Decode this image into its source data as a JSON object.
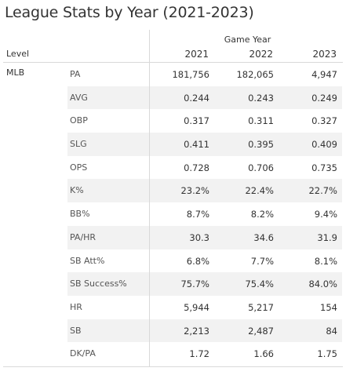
{
  "title": "League Stats by Year (2021-2023)",
  "header": {
    "group_label": "Game Year",
    "level_label": "Level",
    "years": [
      "2021",
      "2022",
      "2023"
    ]
  },
  "level": "MLB",
  "rows": [
    {
      "metric": "PA",
      "values": [
        "181,756",
        "182,065",
        "4,947"
      ]
    },
    {
      "metric": "AVG",
      "values": [
        "0.244",
        "0.243",
        "0.249"
      ]
    },
    {
      "metric": "OBP",
      "values": [
        "0.317",
        "0.311",
        "0.327"
      ]
    },
    {
      "metric": "SLG",
      "values": [
        "0.411",
        "0.395",
        "0.409"
      ]
    },
    {
      "metric": "OPS",
      "values": [
        "0.728",
        "0.706",
        "0.735"
      ]
    },
    {
      "metric": "K%",
      "values": [
        "23.2%",
        "22.4%",
        "22.7%"
      ]
    },
    {
      "metric": "BB%",
      "values": [
        "8.7%",
        "8.2%",
        "9.4%"
      ]
    },
    {
      "metric": "PA/HR",
      "values": [
        "30.3",
        "34.6",
        "31.9"
      ]
    },
    {
      "metric": "SB Att%",
      "values": [
        "6.8%",
        "7.7%",
        "8.1%"
      ]
    },
    {
      "metric": "SB Success%",
      "values": [
        "75.7%",
        "75.4%",
        "84.0%"
      ]
    },
    {
      "metric": "HR",
      "values": [
        "5,944",
        "5,217",
        "154"
      ]
    },
    {
      "metric": "SB",
      "values": [
        "2,213",
        "2,487",
        "84"
      ]
    },
    {
      "metric": "DK/PA",
      "values": [
        "1.72",
        "1.66",
        "1.75"
      ]
    }
  ]
}
